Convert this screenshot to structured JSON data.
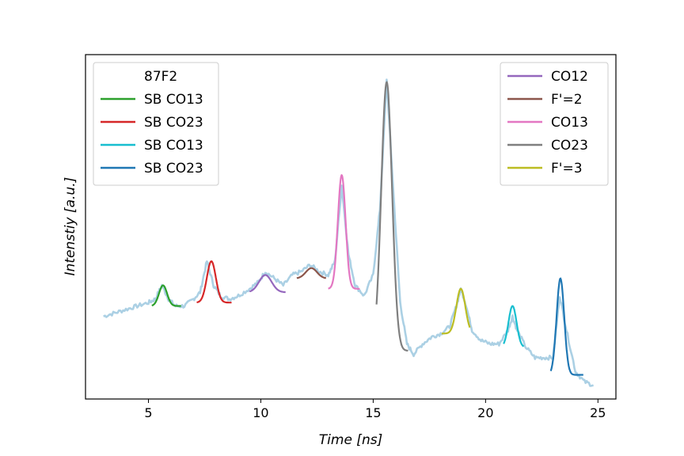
{
  "chart_data": {
    "type": "line",
    "title": "",
    "xlabel": "Time [ns]",
    "ylabel": "Intenstiy [a.u.]",
    "xlim": [
      2.2,
      25.8
    ],
    "ylim": [
      0,
      1
    ],
    "x_ticks": [
      5,
      10,
      15,
      20,
      25
    ],
    "y_ticks": [],
    "grid": false,
    "background_series": {
      "color": "#a6cee3",
      "x": [
        3.0,
        3.5,
        4.0,
        4.5,
        5.0,
        5.3,
        5.6,
        5.9,
        6.2,
        6.6,
        7.0,
        7.3,
        7.6,
        7.9,
        8.2,
        8.6,
        9.0,
        9.5,
        9.9,
        10.2,
        10.6,
        11.0,
        11.4,
        11.8,
        12.2,
        12.6,
        13.0,
        13.3,
        13.6,
        13.9,
        14.2,
        14.6,
        15.0,
        15.3,
        15.6,
        15.9,
        16.2,
        16.5,
        16.8,
        17.2,
        17.6,
        18.0,
        18.4,
        18.7,
        18.9,
        19.1,
        19.4,
        19.8,
        20.2,
        20.6,
        21.0,
        21.2,
        21.4,
        21.8,
        22.2,
        22.6,
        23.0,
        23.3,
        23.6,
        24.0,
        24.4,
        24.8
      ],
      "y": [
        0.24,
        0.25,
        0.26,
        0.27,
        0.28,
        0.29,
        0.33,
        0.29,
        0.27,
        0.27,
        0.29,
        0.31,
        0.4,
        0.33,
        0.3,
        0.29,
        0.3,
        0.32,
        0.34,
        0.37,
        0.35,
        0.33,
        0.36,
        0.37,
        0.39,
        0.37,
        0.36,
        0.4,
        0.62,
        0.42,
        0.33,
        0.3,
        0.36,
        0.55,
        0.93,
        0.6,
        0.28,
        0.16,
        0.13,
        0.16,
        0.18,
        0.19,
        0.21,
        0.27,
        0.32,
        0.28,
        0.2,
        0.17,
        0.16,
        0.16,
        0.2,
        0.24,
        0.2,
        0.15,
        0.12,
        0.12,
        0.12,
        0.3,
        0.2,
        0.08,
        0.05,
        0.04
      ]
    },
    "series": [
      {
        "name": "SB CO13",
        "color": "#2ca02c",
        "center": 5.65,
        "amp": 0.06,
        "sigma": 0.18,
        "base": 0.27,
        "xmin": 5.15,
        "xmax": 6.45
      },
      {
        "name": "SB CO23",
        "color": "#d62728",
        "center": 7.8,
        "amp": 0.12,
        "sigma": 0.2,
        "base": 0.28,
        "xmin": 7.15,
        "xmax": 8.7
      },
      {
        "name": "CO12",
        "color": "#9467bd",
        "center": 10.2,
        "amp": 0.05,
        "sigma": 0.28,
        "base": 0.31,
        "xmin": 9.5,
        "xmax": 11.1
      },
      {
        "name": "F'=2",
        "color": "#8c564b",
        "center": 12.25,
        "amp": 0.03,
        "sigma": 0.25,
        "base": 0.35,
        "xmin": 11.6,
        "xmax": 12.9
      },
      {
        "name": "CO13",
        "color": "#e377c2",
        "center": 13.6,
        "amp": 0.33,
        "sigma": 0.17,
        "base": 0.32,
        "xmin": 13.0,
        "xmax": 14.4
      },
      {
        "name": "CO23",
        "color": "#7f7f7f",
        "center": 15.6,
        "amp": 0.78,
        "sigma": 0.24,
        "base": 0.14,
        "xmin": 15.15,
        "xmax": 16.55
      },
      {
        "name": "F'=3",
        "color": "#bcbd22",
        "center": 18.9,
        "amp": 0.13,
        "sigma": 0.2,
        "base": 0.19,
        "xmin": 18.05,
        "xmax": 19.3
      },
      {
        "name": "SB CO13",
        "color": "#17becf",
        "center": 21.2,
        "amp": 0.12,
        "sigma": 0.18,
        "base": 0.15,
        "xmin": 20.8,
        "xmax": 21.7
      },
      {
        "name": "SB CO23",
        "color": "#1f77b4",
        "center": 23.33,
        "amp": 0.28,
        "sigma": 0.17,
        "base": 0.07,
        "xmin": 22.9,
        "xmax": 24.35
      }
    ],
    "legends": [
      {
        "placement": "upper-left",
        "title": "87F2",
        "entries": [
          {
            "label": "SB CO13",
            "color": "#2ca02c"
          },
          {
            "label": "SB CO23",
            "color": "#d62728"
          },
          {
            "label": "SB CO13",
            "color": "#17becf"
          },
          {
            "label": "SB CO23",
            "color": "#1f77b4"
          }
        ]
      },
      {
        "placement": "upper-right",
        "title": "",
        "entries": [
          {
            "label": "CO12",
            "color": "#9467bd"
          },
          {
            "label": "F'=2",
            "color": "#8c564b"
          },
          {
            "label": "CO13",
            "color": "#e377c2"
          },
          {
            "label": "CO23",
            "color": "#7f7f7f"
          },
          {
            "label": "F'=3",
            "color": "#bcbd22"
          }
        ]
      }
    ]
  }
}
